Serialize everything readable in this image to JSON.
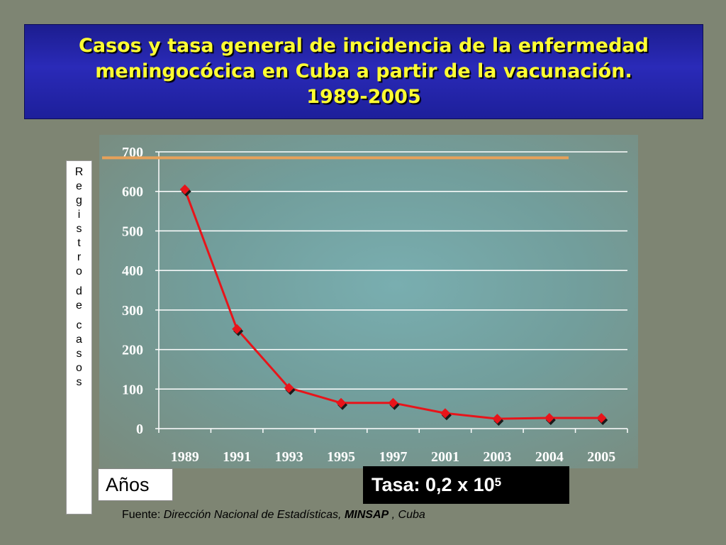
{
  "title": {
    "line1": "Casos y tasa general de incidencia de la enfermedad",
    "line2": "meningocócica en Cuba a partir de la vacunación.",
    "line3": "1989-2005"
  },
  "ylabel_letters": [
    "R",
    "e",
    "g",
    "i",
    "s",
    "t",
    "r",
    "o",
    "",
    "d",
    "e",
    "",
    "c",
    "a",
    "s",
    "o",
    "s"
  ],
  "xlabel": "Años",
  "rate": {
    "prefix": "Tasa: 0,2 x 10",
    "exponent": "5"
  },
  "source": {
    "prefix": "Fuente: ",
    "italic": "Dirección Nacional de Estadísticas, ",
    "bold": "MINSAP",
    "suffix": " , Cuba"
  },
  "colors": {
    "title_text": "#ffff33",
    "title_bg": "#2a2ab8",
    "line": "#e8141a",
    "marker": "#e8141a",
    "reference_line": "#e6a15a",
    "gridline": "#ffffff"
  },
  "chart_data": {
    "type": "line",
    "categories": [
      "1989",
      "1991",
      "1993",
      "1995",
      "1997",
      "2001",
      "2003",
      "2004",
      "2005"
    ],
    "series": [
      {
        "values": [
          605,
          252,
          103,
          65,
          65,
          39,
          25,
          27,
          27
        ]
      }
    ],
    "reference_line": 685,
    "yticks": [
      0,
      100,
      200,
      300,
      400,
      500,
      600,
      700
    ],
    "ylim": [
      0,
      700
    ],
    "grid": true,
    "legend": "none",
    "title": "",
    "xlabel": "Años",
    "ylabel": "Registro de casos"
  }
}
